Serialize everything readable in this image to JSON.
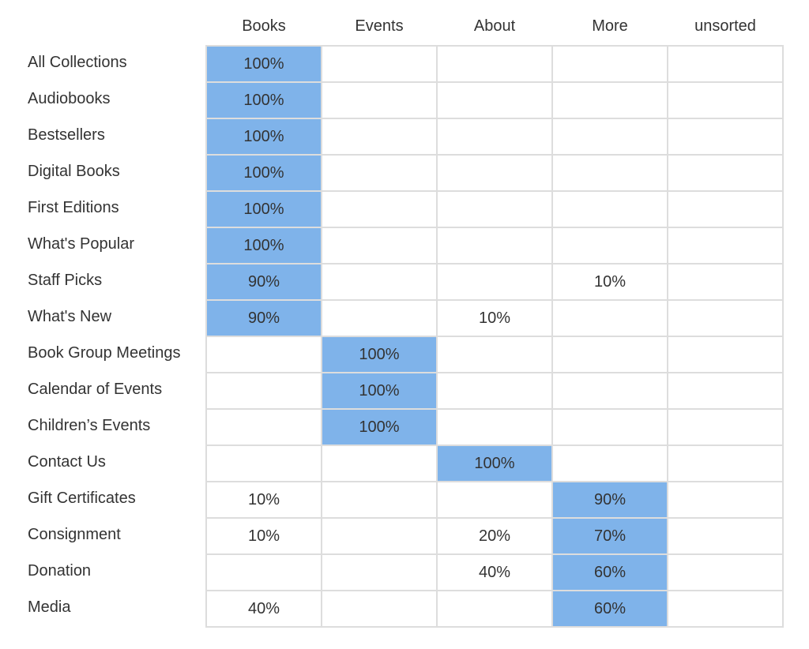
{
  "chart_data": {
    "type": "heatmap",
    "columns": [
      "Books",
      "Events",
      "About",
      "More",
      "unsorted"
    ],
    "rows": [
      {
        "label": "All Collections",
        "values": [
          "100%",
          "",
          "",
          "",
          ""
        ],
        "highlight": 0
      },
      {
        "label": "Audiobooks",
        "values": [
          "100%",
          "",
          "",
          "",
          ""
        ],
        "highlight": 0
      },
      {
        "label": "Bestsellers",
        "values": [
          "100%",
          "",
          "",
          "",
          ""
        ],
        "highlight": 0
      },
      {
        "label": "Digital Books",
        "values": [
          "100%",
          "",
          "",
          "",
          ""
        ],
        "highlight": 0
      },
      {
        "label": "First Editions",
        "values": [
          "100%",
          "",
          "",
          "",
          ""
        ],
        "highlight": 0
      },
      {
        "label": "What's Popular",
        "values": [
          "100%",
          "",
          "",
          "",
          ""
        ],
        "highlight": 0
      },
      {
        "label": "Staff Picks",
        "values": [
          "90%",
          "",
          "",
          "10%",
          ""
        ],
        "highlight": 0
      },
      {
        "label": "What's New",
        "values": [
          "90%",
          "",
          "10%",
          "",
          ""
        ],
        "highlight": 0
      },
      {
        "label": "Book Group Meetings",
        "values": [
          "",
          "100%",
          "",
          "",
          ""
        ],
        "highlight": 1
      },
      {
        "label": "Calendar of Events",
        "values": [
          "",
          "100%",
          "",
          "",
          ""
        ],
        "highlight": 1
      },
      {
        "label": "Children’s Events",
        "values": [
          "",
          "100%",
          "",
          "",
          ""
        ],
        "highlight": 1
      },
      {
        "label": "Contact Us",
        "values": [
          "",
          "",
          "100%",
          "",
          ""
        ],
        "highlight": 2
      },
      {
        "label": "Gift Certificates",
        "values": [
          "10%",
          "",
          "",
          "90%",
          ""
        ],
        "highlight": 3
      },
      {
        "label": "Consignment",
        "values": [
          "10%",
          "",
          "20%",
          "70%",
          ""
        ],
        "highlight": 3
      },
      {
        "label": "Donation",
        "values": [
          "",
          "",
          "40%",
          "60%",
          ""
        ],
        "highlight": 3
      },
      {
        "label": "Media",
        "values": [
          "40%",
          "",
          "",
          "60%",
          ""
        ],
        "highlight": 3
      }
    ],
    "highlight_color": "#7fb3ea",
    "cell_color": "#ffffff",
    "grid_color": "#dddddd",
    "text_color": "#333333"
  }
}
